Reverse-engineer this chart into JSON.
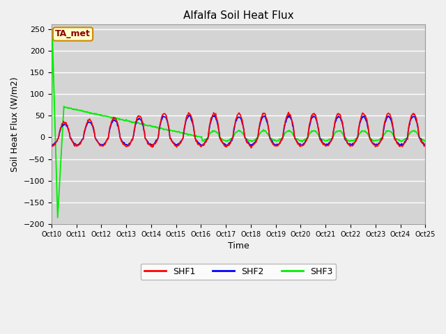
{
  "title": "Alfalfa Soil Heat Flux",
  "ylabel": "Soil Heat Flux (W/m2)",
  "xlabel": "Time",
  "ylim": [
    -200,
    260
  ],
  "xlim": [
    0,
    360
  ],
  "axes_facecolor": "#d4d4d4",
  "fig_facecolor": "#f0f0f0",
  "grid_color": "#ffffff",
  "shf1_color": "#ff0000",
  "shf2_color": "#0000ff",
  "shf3_color": "#00ee00",
  "ta_met_label": "TA_met",
  "ta_met_bg": "#ffffcc",
  "ta_met_border": "#cc8800",
  "yticks": [
    -200,
    -150,
    -100,
    -50,
    0,
    50,
    100,
    150,
    200,
    250
  ],
  "xtick_labels": [
    "Oct 10",
    "Oct 11",
    "Oct 12",
    "Oct 13",
    "Oct 14",
    "Oct 15",
    "Oct 16",
    "Oct 17",
    "Oct 18",
    "Oct 19",
    "Oct 20",
    "Oct 21",
    "Oct 22",
    "Oct 23",
    "Oct 24",
    "Oct 25"
  ],
  "xtick_positions": [
    0,
    24,
    48,
    72,
    96,
    120,
    144,
    168,
    192,
    216,
    240,
    264,
    288,
    312,
    336,
    360
  ]
}
